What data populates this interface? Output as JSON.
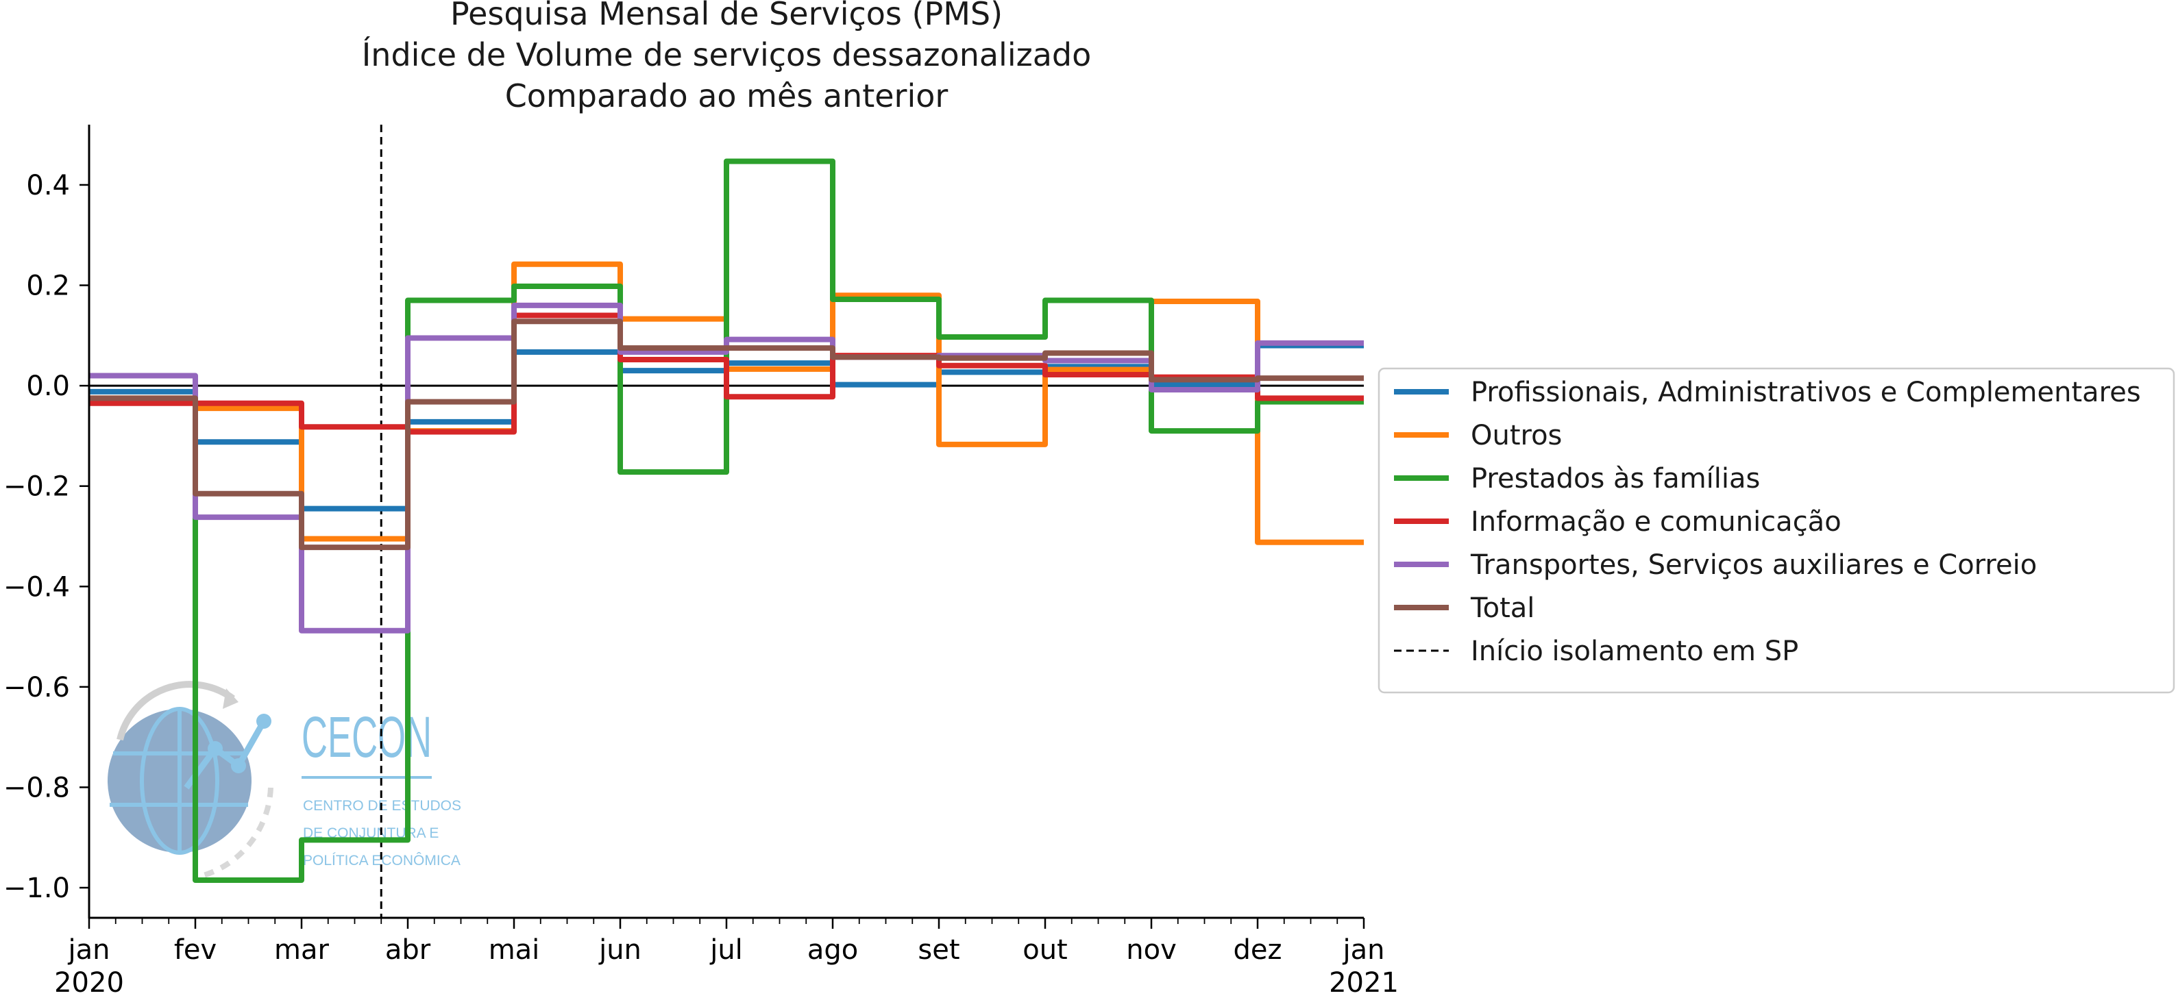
{
  "chart_data": {
    "type": "line",
    "title": [
      "Pesquisa Mensal de Serviços (PMS)",
      "Índice de Volume de serviços dessazonalizado",
      "Comparado ao mês anterior"
    ],
    "xlabel": "",
    "ylabel": "",
    "step": "post",
    "xlim": [
      0,
      12
    ],
    "ylim": [
      -1.06,
      0.52
    ],
    "yticks": [
      0.4,
      0.2,
      0.0,
      -0.2,
      -0.4,
      -0.6,
      -0.8,
      -1.0
    ],
    "ytick_labels": [
      "0.4",
      "0.2",
      "0.0",
      "−0.2",
      "−0.4",
      "−0.6",
      "−0.8",
      "−1.0"
    ],
    "xticks": [
      {
        "pos": 0,
        "label": "jan",
        "sub": "2020"
      },
      {
        "pos": 1,
        "label": "fev",
        "sub": ""
      },
      {
        "pos": 2,
        "label": "mar",
        "sub": ""
      },
      {
        "pos": 3,
        "label": "abr",
        "sub": ""
      },
      {
        "pos": 4,
        "label": "mai",
        "sub": ""
      },
      {
        "pos": 5,
        "label": "jun",
        "sub": ""
      },
      {
        "pos": 6,
        "label": "jul",
        "sub": ""
      },
      {
        "pos": 7,
        "label": "ago",
        "sub": ""
      },
      {
        "pos": 8,
        "label": "set",
        "sub": ""
      },
      {
        "pos": 9,
        "label": "out",
        "sub": ""
      },
      {
        "pos": 10,
        "label": "nov",
        "sub": ""
      },
      {
        "pos": 11,
        "label": "dez",
        "sub": ""
      },
      {
        "pos": 12,
        "label": "jan",
        "sub": "2021"
      }
    ],
    "zero_line": 0.0,
    "vline": {
      "x": 2.75,
      "label": "Início isolamento em SP"
    },
    "series": [
      {
        "name": "Profissionais, Administrativos e Complementares",
        "color": "#1f77b4",
        "values": [
          -0.012,
          -0.112,
          -0.245,
          -0.072,
          0.067,
          0.03,
          0.045,
          0.002,
          0.027,
          0.038,
          0.002,
          0.08,
          0.08
        ]
      },
      {
        "name": "Outros",
        "color": "#ff7f0e",
        "values": [
          -0.025,
          -0.045,
          -0.305,
          -0.09,
          0.242,
          0.133,
          0.033,
          0.18,
          -0.117,
          0.032,
          0.168,
          -0.312,
          -0.312
        ]
      },
      {
        "name": "Prestados às famílias",
        "color": "#2ca02c",
        "values": [
          -0.03,
          -0.985,
          -0.905,
          0.17,
          0.198,
          -0.172,
          0.447,
          0.172,
          0.097,
          0.17,
          -0.09,
          -0.032,
          -0.032
        ]
      },
      {
        "name": "Informação e comunicação",
        "color": "#d62728",
        "values": [
          -0.035,
          -0.035,
          -0.082,
          -0.092,
          0.14,
          0.052,
          -0.022,
          0.06,
          0.04,
          0.022,
          0.017,
          -0.025,
          -0.025
        ]
      },
      {
        "name": "Transportes, Serviços auxiliares e Correio",
        "color": "#9467bd",
        "values": [
          0.02,
          -0.262,
          -0.488,
          0.095,
          0.16,
          0.067,
          0.092,
          0.057,
          0.06,
          0.05,
          -0.008,
          0.085,
          0.085
        ]
      },
      {
        "name": "Total",
        "color": "#8c564b",
        "values": [
          -0.025,
          -0.215,
          -0.322,
          -0.032,
          0.128,
          0.075,
          0.075,
          0.057,
          0.055,
          0.065,
          0.012,
          0.015,
          0.015
        ]
      }
    ],
    "legend": {
      "placement": "right"
    }
  },
  "logo": {
    "name": "CECON",
    "tagline": [
      "CENTRO DE ESTUDOS",
      "DE CONJUNTURA E",
      "POLÍTICA ECONÔMICA"
    ],
    "color": "#8bc4e6"
  }
}
